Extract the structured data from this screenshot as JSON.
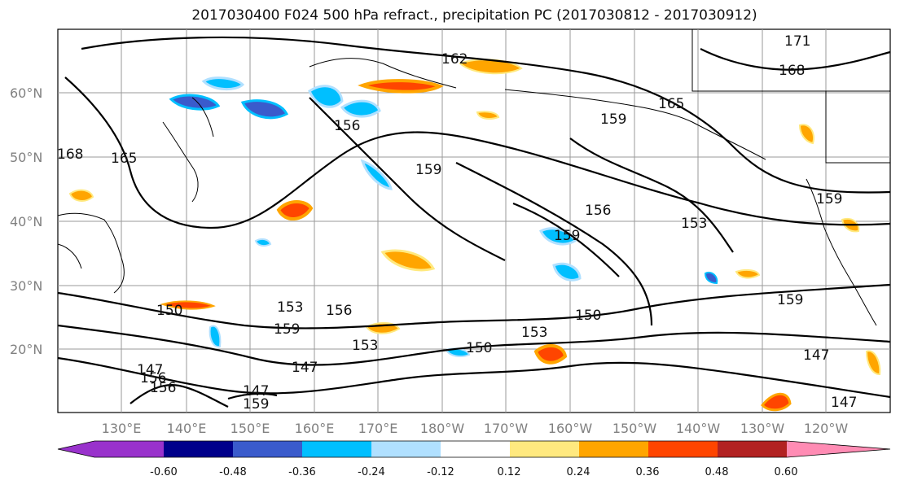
{
  "title": "2017030400 F024 500 hPa refract., precipitation PC (2017030812 - 2017030912)",
  "lat_labels": [
    "60°N",
    "50°N",
    "40°N",
    "30°N",
    "20°N"
  ],
  "lon_labels": [
    "130°E",
    "140°E",
    "150°E",
    "160°E",
    "170°E",
    "180°W",
    "170°W",
    "160°W",
    "150°W",
    "140°W",
    "130°W",
    "120°W"
  ],
  "contour_labels": [
    "171",
    "168",
    "162",
    "165",
    "159",
    "159",
    "156",
    "168",
    "165",
    "159",
    "156",
    "159",
    "153",
    "159",
    "150",
    "153",
    "156",
    "159",
    "153",
    "150",
    "153",
    "150",
    "147",
    "147",
    "147",
    "156",
    "156",
    "159",
    "147",
    "147"
  ],
  "colorbar": {
    "ticks": [
      "-0.60",
      "-0.48",
      "-0.36",
      "-0.24",
      "-0.12",
      "0.12",
      "0.24",
      "0.36",
      "0.48",
      "0.60"
    ],
    "colors": [
      "#9932CC",
      "#00008B",
      "#3A5BCC",
      "#00BFFF",
      "#B0E0FF",
      "#FFFFFF",
      "#FFE97F",
      "#FFA500",
      "#FF4500",
      "#B22222",
      "#FF8CB4"
    ]
  },
  "colors": {
    "blue_shade": "#00BFFF",
    "light_blue": "#B0E0FF",
    "orange": "#FFA500",
    "yellow": "#FFE97F",
    "red": "#FF4500"
  }
}
